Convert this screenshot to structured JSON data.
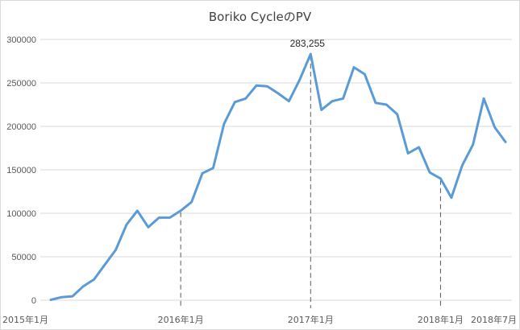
{
  "chart_data": {
    "type": "line",
    "title": "Boriko CycleのPV",
    "xlabel": "",
    "ylabel": "",
    "ylim": [
      0,
      300000
    ],
    "yticks": [
      0,
      50000,
      100000,
      150000,
      200000,
      250000,
      300000
    ],
    "ytick_labels": [
      "0",
      "50000",
      "100000",
      "150000",
      "200000",
      "250000",
      "300000"
    ],
    "grid": "horizontal",
    "legend": "none",
    "colors": {
      "line": "#5b9bd5",
      "grid": "#d9d9d9",
      "reference": "#595959"
    },
    "x_labels": [
      {
        "index": 0,
        "label": "2015年1月"
      },
      {
        "index": 12,
        "label": "2016年1月"
      },
      {
        "index": 24,
        "label": "2017年1月"
      },
      {
        "index": 36,
        "label": "2018年1月"
      },
      {
        "index": 42,
        "label": "2018年7月"
      }
    ],
    "reference_lines": [
      12,
      24,
      36
    ],
    "annotations": [
      {
        "index": 24,
        "text": "283,255"
      }
    ],
    "series": [
      {
        "values": [
          500,
          3500,
          4500,
          16000,
          24000,
          41000,
          58000,
          87000,
          103000,
          84000,
          95000,
          95000,
          103000,
          113000,
          146000,
          152000,
          203000,
          228000,
          232000,
          247000,
          246000,
          238000,
          229000,
          254000,
          283255,
          219000,
          229000,
          232000,
          268000,
          260000,
          227000,
          225000,
          214000,
          169000,
          176000,
          147000,
          140000,
          118000,
          155000,
          179000,
          232000,
          199000,
          182000
        ]
      }
    ]
  }
}
